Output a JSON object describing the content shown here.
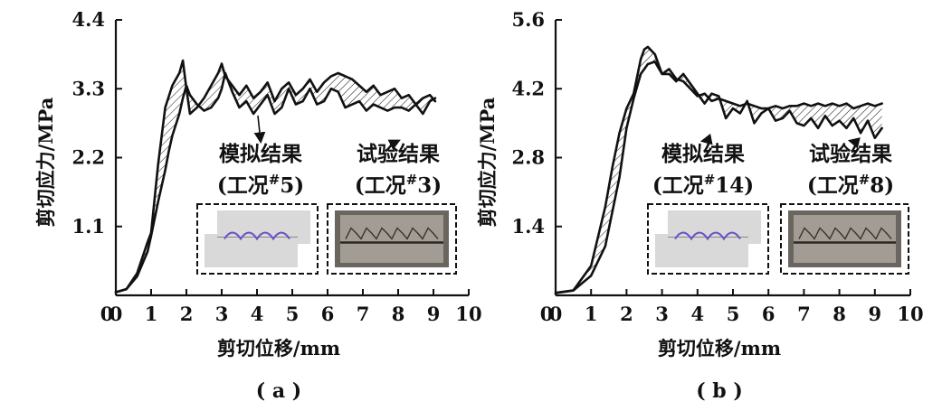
{
  "chart_data": [
    {
      "type": "line",
      "panel_label": "( a )",
      "xlabel": "剪切位移/mm",
      "ylabel": "剪切应力/MPa",
      "xlim": [
        0,
        10
      ],
      "ylim": [
        0,
        4.4
      ],
      "x_ticks": [
        0,
        1,
        2,
        3,
        4,
        5,
        6,
        7,
        8,
        9,
        10
      ],
      "x_tick_labels": [
        "0",
        "1",
        "2",
        "3",
        "4",
        "5",
        "6",
        "7",
        "8",
        "9",
        "10"
      ],
      "y_ticks": [
        1.1,
        2.2,
        3.3,
        4.4
      ],
      "y_tick_labels": [
        "1.1",
        "2.2",
        "3.3",
        "4.4"
      ],
      "annotations": [
        {
          "line1": "模拟结果",
          "line2": "(工况",
          "sup": "#",
          "num": "5)",
          "kind": "simulation",
          "arrow_to": [
            4.3,
            2.95
          ]
        },
        {
          "line1": "试验结果",
          "line2": "(工况",
          "sup": "#",
          "num": "3)",
          "kind": "test",
          "arrow_to": [
            6.3,
            3.3
          ]
        }
      ],
      "series": [
        {
          "x": [
            0,
            0.3,
            0.6,
            0.9,
            1.0,
            1.2,
            1.4,
            1.5,
            1.6,
            1.8,
            1.9,
            2.0,
            2.1,
            2.3,
            2.5,
            2.7,
            2.9,
            3.0,
            3.1,
            3.3,
            3.5,
            3.7,
            3.9,
            4.1,
            4.3,
            4.5,
            4.7,
            4.9,
            5.1,
            5.3,
            5.5,
            5.7,
            5.9,
            6.1,
            6.3,
            6.5,
            6.7,
            6.9,
            7.1,
            7.3,
            7.5,
            7.7,
            7.9,
            8.1,
            8.3,
            8.5,
            8.7,
            8.9,
            9.05
          ],
          "y": [
            0.05,
            0.1,
            0.3,
            0.7,
            0.95,
            1.5,
            2.0,
            2.3,
            2.55,
            2.9,
            3.15,
            3.35,
            3.2,
            3.05,
            2.95,
            3.0,
            3.15,
            3.3,
            3.55,
            3.25,
            3.0,
            3.1,
            2.9,
            3.05,
            3.2,
            2.9,
            3.0,
            3.3,
            3.05,
            3.1,
            3.3,
            3.05,
            3.1,
            3.3,
            3.25,
            3.0,
            3.05,
            3.1,
            2.95,
            3.05,
            3.0,
            2.95,
            3.0,
            3.0,
            2.95,
            3.05,
            2.9,
            3.1,
            3.15
          ]
        },
        {
          "x": [
            0,
            0.3,
            0.6,
            0.9,
            1.0,
            1.2,
            1.4,
            1.6,
            1.8,
            1.9,
            2.0,
            2.1,
            2.3,
            2.5,
            2.7,
            2.9,
            3.0,
            3.1,
            3.3,
            3.5,
            3.7,
            3.9,
            4.1,
            4.3,
            4.5,
            4.7,
            4.9,
            5.1,
            5.3,
            5.5,
            5.7,
            5.9,
            6.1,
            6.3,
            6.5,
            6.7,
            6.9,
            7.1,
            7.3,
            7.5,
            7.7,
            7.9,
            8.1,
            8.3,
            8.5,
            8.7,
            8.9,
            9.05
          ],
          "y": [
            0.05,
            0.1,
            0.35,
            0.85,
            1.0,
            2.1,
            3.0,
            3.35,
            3.55,
            3.75,
            3.3,
            2.9,
            3.0,
            3.15,
            3.35,
            3.55,
            3.7,
            3.5,
            3.35,
            3.2,
            3.35,
            3.15,
            3.25,
            3.4,
            3.1,
            3.3,
            3.4,
            3.2,
            3.3,
            3.45,
            3.25,
            3.4,
            3.5,
            3.55,
            3.5,
            3.45,
            3.35,
            3.25,
            3.35,
            3.2,
            3.25,
            3.3,
            3.15,
            3.2,
            3.05,
            3.15,
            3.2,
            3.1
          ]
        }
      ],
      "photos": [
        {
          "kind": "simulation",
          "image": "simulation-photo"
        },
        {
          "kind": "test",
          "image": "test-photo"
        }
      ]
    },
    {
      "type": "line",
      "panel_label": "( b )",
      "xlabel": "剪切位移/mm",
      "ylabel": "剪切应力/MPa",
      "xlim": [
        0,
        10
      ],
      "ylim": [
        0,
        5.6
      ],
      "x_ticks": [
        0,
        1,
        2,
        3,
        4,
        5,
        6,
        7,
        8,
        9,
        10
      ],
      "x_tick_labels": [
        "0",
        "1",
        "2",
        "3",
        "4",
        "5",
        "6",
        "7",
        "8",
        "9",
        "10"
      ],
      "y_ticks": [
        1.4,
        2.8,
        4.2,
        5.6
      ],
      "y_tick_labels": [
        "1.4",
        "2.8",
        "4.2",
        "5.6"
      ],
      "annotations": [
        {
          "line1": "模拟结果",
          "line2": "(工况",
          "sup": "#",
          "num": "14)",
          "kind": "simulation",
          "arrow_to": [
            5.3,
            3.8
          ]
        },
        {
          "line1": "试验结果",
          "line2": "(工况",
          "sup": "#",
          "num": "8)",
          "kind": "test",
          "arrow_to": [
            9.0,
            3.6
          ]
        }
      ],
      "series": [
        {
          "x": [
            0,
            0.5,
            1.0,
            1.4,
            1.8,
            2.0,
            2.2,
            2.4,
            2.6,
            2.8,
            3.0,
            3.2,
            3.4,
            3.6,
            3.8,
            4.0,
            4.2,
            4.4,
            4.6,
            4.8,
            5.0,
            5.2,
            5.4,
            5.6,
            5.8,
            6.0,
            6.2,
            6.4,
            6.6,
            6.8,
            7.0,
            7.2,
            7.4,
            7.6,
            7.8,
            8.0,
            8.2,
            8.4,
            8.6,
            8.8,
            9.0,
            9.2
          ],
          "y": [
            0.05,
            0.1,
            0.4,
            1.0,
            2.4,
            3.4,
            4.0,
            4.5,
            4.7,
            4.75,
            4.5,
            4.6,
            4.4,
            4.35,
            4.2,
            4.05,
            4.1,
            3.95,
            4.0,
            3.95,
            3.9,
            3.85,
            3.9,
            3.85,
            3.8,
            3.8,
            3.85,
            3.8,
            3.85,
            3.85,
            3.9,
            3.85,
            3.9,
            3.85,
            3.9,
            3.85,
            3.9,
            3.8,
            3.85,
            3.9,
            3.85,
            3.9
          ]
        },
        {
          "x": [
            0,
            0.5,
            1.0,
            1.4,
            1.6,
            1.8,
            2.0,
            2.2,
            2.4,
            2.5,
            2.6,
            2.8,
            3.0,
            3.2,
            3.4,
            3.6,
            3.8,
            4.0,
            4.2,
            4.4,
            4.6,
            4.8,
            5.0,
            5.2,
            5.4,
            5.6,
            5.8,
            6.0,
            6.2,
            6.4,
            6.6,
            6.8,
            7.0,
            7.2,
            7.4,
            7.6,
            7.8,
            8.0,
            8.2,
            8.4,
            8.6,
            8.8,
            9.0,
            9.2
          ],
          "y": [
            0.05,
            0.1,
            0.6,
            1.8,
            2.6,
            3.3,
            3.8,
            4.1,
            4.8,
            5.0,
            5.05,
            4.9,
            4.5,
            4.5,
            4.35,
            4.5,
            4.3,
            4.1,
            3.9,
            4.1,
            4.05,
            3.6,
            3.8,
            3.7,
            3.95,
            3.5,
            3.7,
            3.8,
            3.55,
            3.6,
            3.75,
            3.5,
            3.45,
            3.6,
            3.4,
            3.65,
            3.45,
            3.55,
            3.4,
            3.6,
            3.3,
            3.55,
            3.2,
            3.4
          ]
        }
      ],
      "photos": [
        {
          "kind": "simulation",
          "image": "simulation-photo"
        },
        {
          "kind": "test",
          "image": "test-photo"
        }
      ]
    }
  ]
}
